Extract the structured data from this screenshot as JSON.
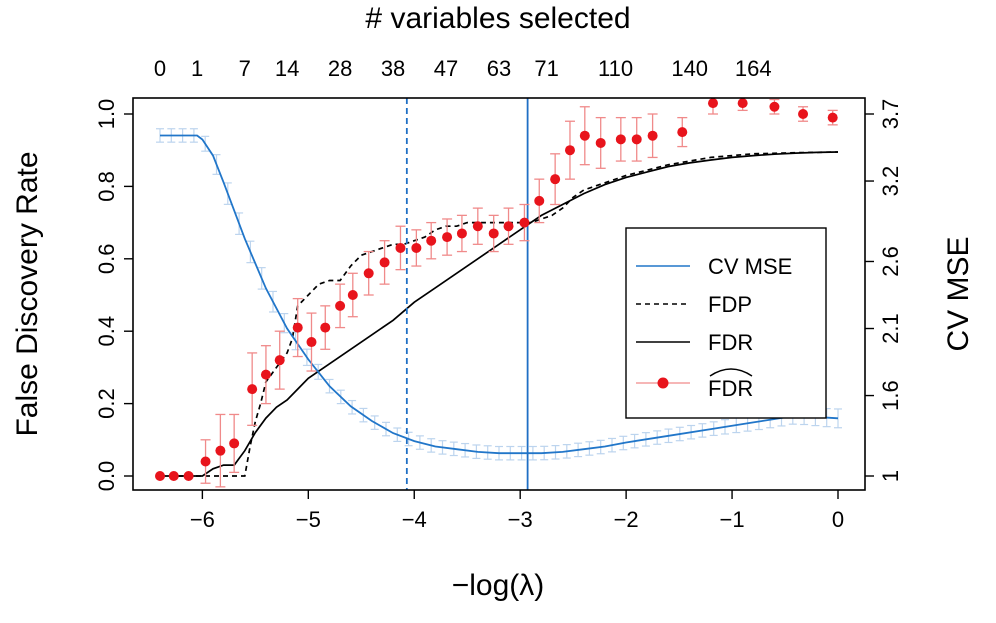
{
  "chart_data": {
    "type": "line",
    "title": "",
    "xlabel": "−log(λ)",
    "ylabel_left": "False Discovery Rate",
    "ylabel_right": "CV MSE",
    "top_axis_label": "# variables selected",
    "xlim": [
      -6.4,
      0.0
    ],
    "ylim_left": [
      0.0,
      1.0
    ],
    "ylim_right": [
      1.0,
      3.7
    ],
    "x_ticks": [
      -6,
      -5,
      -4,
      -3,
      -2,
      -1,
      0
    ],
    "x_tick_labels": [
      "−6",
      "−5",
      "−4",
      "−3",
      "−2",
      "−1",
      "0"
    ],
    "y_left_ticks": [
      0.0,
      0.2,
      0.4,
      0.6,
      0.8,
      1.0
    ],
    "y_left_tick_labels": [
      "0.0",
      "0.2",
      "0.4",
      "0.6",
      "0.8",
      "1.0"
    ],
    "y_right_ticks": [
      1.0,
      1.6,
      2.1,
      2.6,
      3.2,
      3.7
    ],
    "y_right_tick_labels": [
      "1",
      "1.6",
      "2.1",
      "2.6",
      "3.2",
      "3.7"
    ],
    "top_ticks": [
      {
        "x": -6.4,
        "label": "0"
      },
      {
        "x": -6.05,
        "label": "1"
      },
      {
        "x": -5.6,
        "label": "7"
      },
      {
        "x": -5.2,
        "label": "14"
      },
      {
        "x": -4.7,
        "label": "28"
      },
      {
        "x": -4.2,
        "label": "38"
      },
      {
        "x": -3.7,
        "label": "47"
      },
      {
        "x": -3.2,
        "label": "63"
      },
      {
        "x": -2.75,
        "label": "71"
      },
      {
        "x": -2.1,
        "label": "110"
      },
      {
        "x": -1.4,
        "label": "140"
      },
      {
        "x": -0.8,
        "label": "164"
      }
    ],
    "vlines": [
      {
        "x": -4.07,
        "style": "dashed",
        "color": "#1f6fc4"
      },
      {
        "x": -2.93,
        "style": "solid",
        "color": "#1f6fc4"
      }
    ],
    "legend": {
      "position": "right",
      "entries": [
        "CV MSE",
        "FDP",
        "FDR",
        "FDR"
      ]
    },
    "colors": {
      "cv_mse": "#2176c9",
      "cv_band": "#bcd4ee",
      "points": "#e8141c",
      "errorbars": "#f08a8a",
      "lines": "#000000"
    },
    "series": [
      {
        "name": "CV MSE",
        "axis": "right",
        "x": [
          -6.4,
          -6.2,
          -6.05,
          -6.0,
          -5.9,
          -5.8,
          -5.6,
          -5.4,
          -5.2,
          -5.0,
          -4.8,
          -4.6,
          -4.4,
          -4.2,
          -4.0,
          -3.8,
          -3.6,
          -3.4,
          -3.2,
          -3.0,
          -2.8,
          -2.6,
          -2.4,
          -2.2,
          -2.0,
          -1.6,
          -1.2,
          -0.8,
          -0.4,
          0.0
        ],
        "y": [
          3.54,
          3.54,
          3.54,
          3.51,
          3.39,
          3.19,
          2.77,
          2.4,
          2.1,
          1.87,
          1.67,
          1.52,
          1.41,
          1.32,
          1.26,
          1.22,
          1.2,
          1.18,
          1.17,
          1.17,
          1.17,
          1.18,
          1.2,
          1.22,
          1.25,
          1.3,
          1.35,
          1.4,
          1.45,
          1.43
        ],
        "band": [
          0.05,
          0.05,
          0.05,
          0.05,
          0.07,
          0.08,
          0.08,
          0.08,
          0.07,
          0.06,
          0.05,
          0.05,
          0.05,
          0.05,
          0.05,
          0.05,
          0.05,
          0.05,
          0.05,
          0.05,
          0.05,
          0.05,
          0.05,
          0.05,
          0.05,
          0.05,
          0.05,
          0.06,
          0.06,
          0.07
        ]
      },
      {
        "name": "FDP",
        "axis": "left",
        "x": [
          -6.4,
          -5.6,
          -5.55,
          -5.5,
          -5.45,
          -5.4,
          -5.3,
          -5.2,
          -5.15,
          -5.1,
          -5.0,
          -4.9,
          -4.8,
          -4.7,
          -4.6,
          -4.5,
          -4.4,
          -4.3,
          -4.2,
          -4.1,
          -4.0,
          -3.9,
          -3.8,
          -3.7,
          -3.6,
          -3.5,
          -3.4,
          -3.3,
          -3.2,
          -3.1,
          -3.0,
          -2.9,
          -2.8,
          -2.7,
          -2.6,
          -2.5,
          -2.4,
          -2.2,
          -2.0,
          -1.6,
          -1.2,
          -0.8,
          -0.4,
          0.0
        ],
        "y": [
          0.0,
          0.0,
          0.08,
          0.15,
          0.2,
          0.26,
          0.3,
          0.34,
          0.38,
          0.47,
          0.5,
          0.53,
          0.54,
          0.54,
          0.58,
          0.61,
          0.62,
          0.63,
          0.64,
          0.64,
          0.65,
          0.66,
          0.68,
          0.69,
          0.69,
          0.7,
          0.7,
          0.7,
          0.7,
          0.7,
          0.7,
          0.7,
          0.71,
          0.72,
          0.74,
          0.77,
          0.79,
          0.81,
          0.83,
          0.86,
          0.88,
          0.89,
          0.893,
          0.895
        ]
      },
      {
        "name": "FDR",
        "axis": "left",
        "x": [
          -6.4,
          -6.0,
          -5.9,
          -5.8,
          -5.7,
          -5.65,
          -5.6,
          -5.5,
          -5.4,
          -5.3,
          -5.2,
          -5.1,
          -5.0,
          -4.8,
          -4.6,
          -4.4,
          -4.2,
          -4.0,
          -3.8,
          -3.6,
          -3.4,
          -3.2,
          -3.0,
          -2.8,
          -2.6,
          -2.4,
          -2.2,
          -2.0,
          -1.8,
          -1.6,
          -1.4,
          -1.2,
          -1.0,
          -0.8,
          -0.6,
          -0.4,
          -0.2,
          0.0
        ],
        "y": [
          0.0,
          0.0,
          0.02,
          0.03,
          0.03,
          0.05,
          0.07,
          0.12,
          0.16,
          0.19,
          0.21,
          0.24,
          0.27,
          0.31,
          0.35,
          0.39,
          0.43,
          0.48,
          0.52,
          0.56,
          0.6,
          0.64,
          0.68,
          0.72,
          0.75,
          0.78,
          0.805,
          0.825,
          0.84,
          0.855,
          0.865,
          0.873,
          0.88,
          0.885,
          0.889,
          0.892,
          0.894,
          0.895
        ]
      },
      {
        "name": "FDR",
        "axis": "left",
        "type": "scatter",
        "x": [
          -6.4,
          -6.27,
          -6.13,
          -5.97,
          -5.83,
          -5.7,
          -5.53,
          -5.4,
          -5.27,
          -5.1,
          -4.97,
          -4.84,
          -4.7,
          -4.58,
          -4.43,
          -4.28,
          -4.13,
          -3.98,
          -3.84,
          -3.69,
          -3.55,
          -3.4,
          -3.25,
          -3.11,
          -2.96,
          -2.82,
          -2.67,
          -2.53,
          -2.39,
          -2.24,
          -2.05,
          -1.9,
          -1.75,
          -1.47,
          -1.18,
          -0.9,
          -0.6,
          -0.33,
          -0.05
        ],
        "y": [
          0.0,
          0.0,
          0.0,
          0.04,
          0.07,
          0.09,
          0.24,
          0.28,
          0.32,
          0.41,
          0.37,
          0.41,
          0.47,
          0.5,
          0.56,
          0.59,
          0.63,
          0.63,
          0.65,
          0.66,
          0.67,
          0.69,
          0.67,
          0.69,
          0.7,
          0.76,
          0.82,
          0.9,
          0.94,
          0.92,
          0.93,
          0.93,
          0.94,
          0.95,
          1.03,
          1.03,
          1.02,
          1.0,
          0.99
        ],
        "err": [
          0.0,
          0.0,
          0.0,
          0.06,
          0.1,
          0.08,
          0.1,
          0.08,
          0.08,
          0.08,
          0.08,
          0.06,
          0.06,
          0.06,
          0.06,
          0.06,
          0.06,
          0.05,
          0.05,
          0.05,
          0.05,
          0.05,
          0.05,
          0.05,
          0.05,
          0.06,
          0.07,
          0.08,
          0.08,
          0.07,
          0.06,
          0.06,
          0.06,
          0.04,
          0.03,
          0.02,
          0.02,
          0.02,
          0.02
        ]
      }
    ]
  }
}
